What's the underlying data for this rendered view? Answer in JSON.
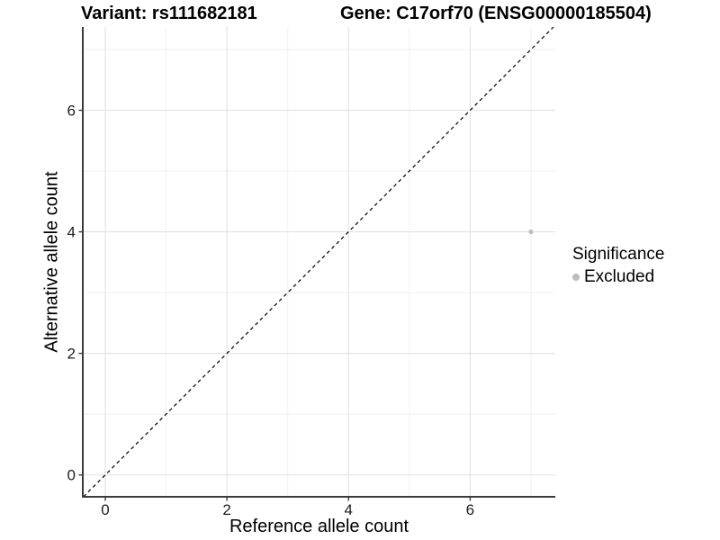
{
  "figure": {
    "title_left": "Variant: rs111682181",
    "title_right": "Gene: C17orf70 (ENSG00000185504)"
  },
  "chart_data": {
    "type": "scatter",
    "title": "Variant: rs111682181 / Gene: C17orf70 (ENSG00000185504)",
    "xlabel": "Reference allele count",
    "ylabel": "Alternative allele count",
    "xlim": [
      -0.37,
      7.4
    ],
    "ylim": [
      -0.36,
      7.37
    ],
    "x_major_ticks": [
      0,
      2,
      4,
      6
    ],
    "y_major_ticks": [
      0,
      2,
      4,
      6
    ],
    "x_minor_ticks": [
      1,
      3,
      5,
      7
    ],
    "y_minor_ticks": [
      1,
      3,
      5,
      7
    ],
    "grid": true,
    "identity_line": {
      "equation": "y = x",
      "style": "dashed",
      "color": "#000000"
    },
    "series": [
      {
        "name": "Excluded",
        "color": "#bdbdbd",
        "points": [
          [
            7,
            4
          ]
        ]
      }
    ],
    "legend": {
      "title": "Significance",
      "position": "right",
      "entries": [
        {
          "label": "Excluded",
          "color": "#bdbdbd"
        }
      ]
    },
    "style": {
      "grid_major_color": "#e4e4e4",
      "grid_minor_color": "#f1f1f1",
      "axis_line_color": "#3c3c3c",
      "background": "#ffffff"
    }
  }
}
